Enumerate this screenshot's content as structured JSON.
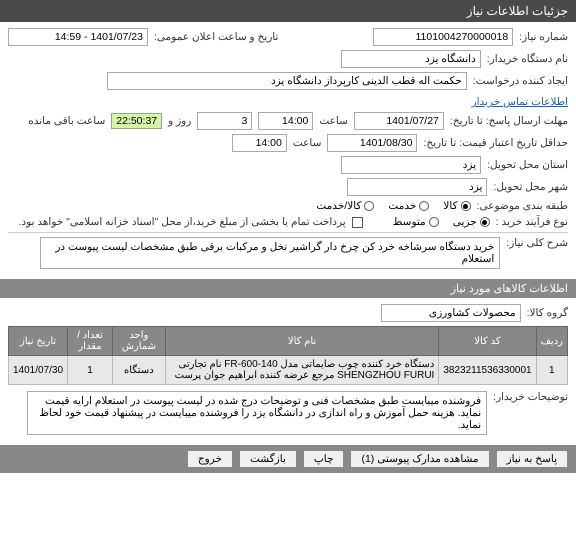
{
  "header": {
    "title": "جزئیات اطلاعات نیاز"
  },
  "fields": {
    "requestNumber": {
      "label": "شماره نیاز:",
      "value": "1101004270000018"
    },
    "announceDateTime": {
      "label": "تاریخ و ساعت اعلان عمومی:",
      "value": "1401/07/23 - 14:59"
    },
    "deviceName": {
      "label": "نام دستگاه خریدار:",
      "value": "دانشگاه یزد"
    },
    "creator": {
      "label": "ایجاد کننده درخواست:",
      "value": "حکمت اله قطب الدینی کارپرداز دانشگاه یزد"
    },
    "buyerContact": {
      "label": "اطلاعات تماس خریدار"
    },
    "responseDeadline": {
      "label": "مهلت ارسال پاسخ: تا تاریخ:",
      "date": "1401/07/27",
      "timeLabel": "ساعت",
      "time": "14:00",
      "daysValue": "3",
      "daysLabel": "روز و",
      "hoursValue": "22:50:37",
      "remainingLabel": "ساعت باقی مانده"
    },
    "priceValidity": {
      "label": "حداقل تاریخ اعتبار قیمت: تا تاریخ:",
      "date": "1401/08/30",
      "timeLabel": "ساعت",
      "time": "14:00"
    },
    "deliveryProvince": {
      "label": "استان محل تحویل:",
      "value": "یزد"
    },
    "deliveryCity": {
      "label": "شهر محل تحویل:",
      "value": "یزد"
    },
    "subjectClass": {
      "label": "طبقه بندی موضوعی:",
      "options": [
        "کالا",
        "خدمت",
        "کالا/خدمت"
      ],
      "selected": 0
    },
    "purchaseProcess": {
      "label": "نوع فرآیند خرید :",
      "options": [
        "جزیی",
        "متوسط"
      ],
      "selected": 0
    },
    "paymentNote": "پرداخت تمام یا بخشی از مبلغ خرید،از محل \"اسناد خزانه اسلامی\" خواهد بود.",
    "generalDesc": {
      "label": "شرح کلی نیاز:",
      "value": "خرید دستگاه سرشاخه خرد کن چرخ دار گراشیر تخل و مرکبات برقی طبق مشخصات لیست پیوست در استعلام"
    },
    "itemsSection": {
      "title": "اطلاعات کالاهای مورد نیاز"
    },
    "goodsGroup": {
      "label": "گروه کالا:",
      "value": "محصولات کشاورزی"
    },
    "table": {
      "columns": [
        "ردیف",
        "کد کالا",
        "نام کالا",
        "واحد شمارش",
        "تعداد / مقدار",
        "تاریخ نیاز"
      ],
      "rows": [
        [
          "1",
          "3823211536330001",
          "دستگاه خرد کننده چوب صایماتی مدل FR-600-140 نام تجارتی SHENGZHOU FURUI مرجع عرضه کننده ابراهیم جوان پرست",
          "دستگاه",
          "1",
          "1401/07/30"
        ]
      ]
    },
    "buyerDesc": {
      "label": "توضیحات خریدار:",
      "value": "فروشنده میبایست طبق مشخصات فنی و توضیحات درج شده در لیست پیوست در استعلام ارایه قیمت نماید. هزینه حمل آموزش و راه اندازی در دانشگاه یزد را فروشنده میبایست در پیشنهاد قیمت خود لحاظ نماید."
    }
  },
  "footer": {
    "buttons": [
      "پاسخ به نیاز",
      "مشاهده مدارک پیوستی (1)",
      "چاپ",
      "بازگشت",
      "خروج"
    ]
  }
}
